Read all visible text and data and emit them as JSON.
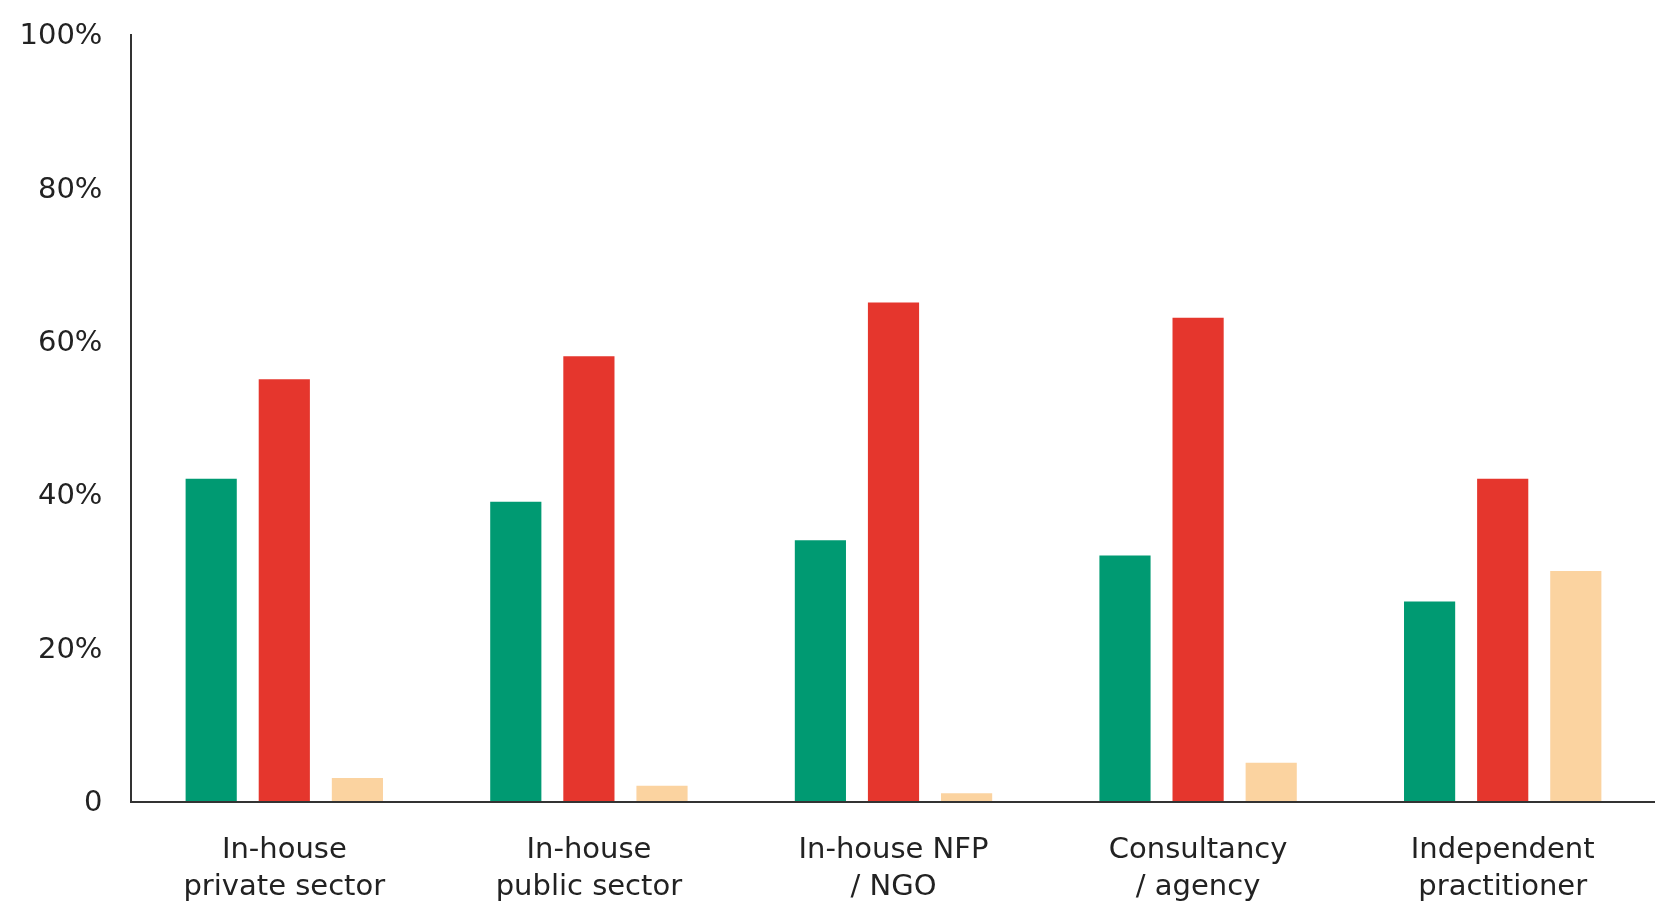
{
  "chart_data": {
    "type": "bar",
    "categories": [
      "In-house\nprivate sector",
      "In-house\npublic sector",
      "In-house NFP\n/ NGO",
      "Consultancy\n/ agency",
      "Independent\npractitioner"
    ],
    "series": [
      {
        "color": "#009a72",
        "values": [
          42,
          39,
          34,
          32,
          26
        ]
      },
      {
        "color": "#e5362d",
        "values": [
          55,
          58,
          65,
          63,
          42
        ]
      },
      {
        "color": "#fbd3a0",
        "values": [
          3,
          2,
          1,
          5,
          30
        ]
      }
    ],
    "ylim": [
      0,
      100
    ],
    "yticks": [
      {
        "value": 0,
        "label": "0"
      },
      {
        "value": 20,
        "label": "20%"
      },
      {
        "value": 40,
        "label": "40%"
      },
      {
        "value": 60,
        "label": "60%"
      },
      {
        "value": 80,
        "label": "80%"
      },
      {
        "value": 100,
        "label": "100%"
      }
    ],
    "grid": false
  }
}
